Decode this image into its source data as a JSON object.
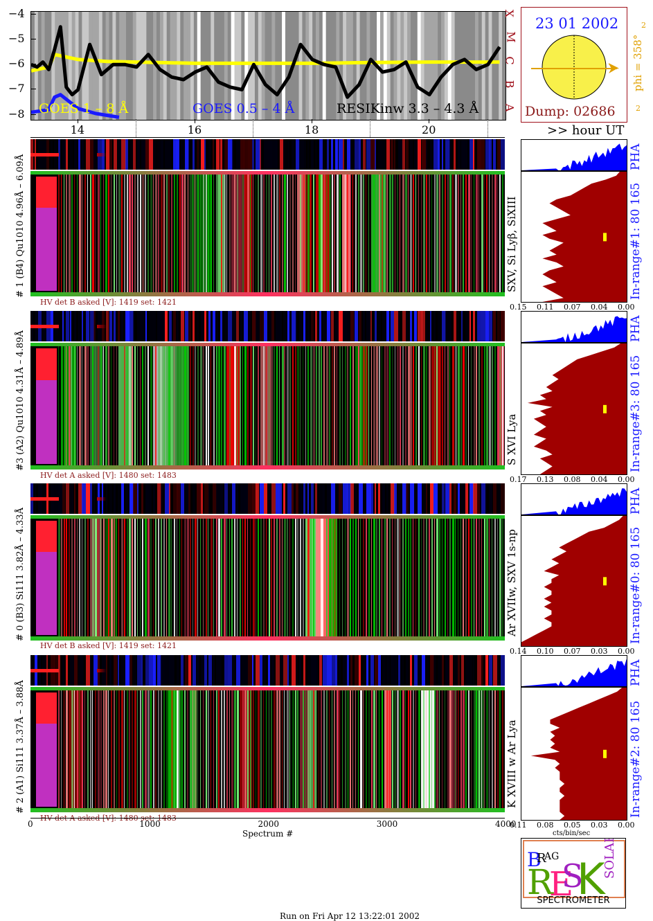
{
  "colors": {
    "goes_long": "#ffff00",
    "goes_short": "#1a1aff",
    "resik": "#000000",
    "hist_fill": "#a00000",
    "pha_fill": "#0000ff",
    "side_label": "#1a1aff",
    "hv_text": "#8b1a1a",
    "date": "#1a1aff",
    "dump": "#8b1a1a",
    "phi": "#e0a000",
    "letters": "#a0101a",
    "sun": "#f8f04a"
  },
  "lightcurve": {
    "y_ticks": [
      "−4",
      "−5",
      "−6",
      "−7",
      "−8"
    ],
    "legend_goes_long": "GOES 1 – 8 Å",
    "legend_goes_short": "GOES 0.5 – 4 Å",
    "legend_resik": "RESIKinw 3.3 – 4.3 Å",
    "hour_ticks": [
      "14",
      "16",
      "18",
      "20"
    ],
    "hour_axis_label": ">> hour UT",
    "class_letters": [
      "X",
      "M",
      "C",
      "B",
      "A"
    ]
  },
  "sun_panel": {
    "date": "23 01 2002",
    "dump": "Dump: 02686",
    "phi": "phi = 358°",
    "marker_top": "2",
    "marker_bottom": "2"
  },
  "channels": [
    {
      "left_label": "# 1 (B4) Qu1010 4.96Å – 6.09Å",
      "right_label": "SXV, Si Lyβ, SiXIII",
      "side_pha": "PHA",
      "side_range": "In-range#1:   80 165",
      "hv": "HV det B asked [V]:  1419 set:  1421",
      "hist_ticks": [
        "0.15",
        "0.11",
        "0.07",
        "0.04",
        "0.00"
      ]
    },
    {
      "left_label": "#3 (A2) Qu1010  4.31Å – 4.89Å",
      "right_label": "S XVI Lya",
      "side_pha": "PHA",
      "side_range": "In-range#3:   80 165",
      "hv": "HV det A asked [V]:  1480 set:  1483",
      "hist_ticks": [
        "0.17",
        "0.13",
        "0.08",
        "0.04",
        "0.00"
      ]
    },
    {
      "left_label": "# 0 (B3) Si111  3.82Å – 4.33Å",
      "right_label": "Ar XVIIw,  SXV 1s-np",
      "side_pha": "PHA",
      "side_range": "In-range#0:   80 165",
      "hv": "HV det B asked [V]:  1419 set:  1421",
      "hist_ticks": [
        "0.14",
        "0.10",
        "0.07",
        "0.03",
        "0.00"
      ]
    },
    {
      "left_label": "# 2 (A1) Si111  3.37Å – 3.88Å",
      "right_label": "K XVIII w  Ar Lya",
      "side_pha": "PHA",
      "side_range": "In-range#2:   80 165",
      "hv": "HV det A asked [V]:  1480 set:  1483",
      "hist_ticks": [
        "0.11",
        "0.08",
        "0.05",
        "0.03",
        "0.00"
      ]
    }
  ],
  "spectrum_axis": {
    "ticks": [
      "0",
      "1000",
      "2000",
      "3000",
      "4000"
    ],
    "label": "Spectrum #"
  },
  "hist_axis_label": "cts/bin/sec",
  "logo": {
    "bottom_text": "SPECTROMETER",
    "letters": [
      "B",
      "R",
      "A",
      "G",
      "R",
      "E",
      "S",
      "I",
      "K",
      "S",
      "O",
      "L",
      "A",
      "R"
    ]
  },
  "footer": "Run on Fri Apr 12 13:22:01 2002",
  "chart_data": [
    {
      "type": "line",
      "title": "",
      "ylabel": "",
      "ylim": [
        -8.2,
        -3.9
      ],
      "xlim": [
        13.2,
        21.3
      ],
      "x_tick_labels": [
        "14",
        "16",
        "18",
        "20"
      ],
      "series": [
        {
          "name": "GOES 1 – 8 Å",
          "x": [
            13.2,
            13.5,
            13.6,
            13.8,
            14.0,
            14.5,
            15.0,
            16.0,
            17.0,
            18.0,
            19.0,
            20.0,
            21.2
          ],
          "y": [
            -6.25,
            -6.1,
            -5.6,
            -5.7,
            -5.8,
            -5.88,
            -5.9,
            -5.95,
            -5.95,
            -5.95,
            -5.92,
            -5.9,
            -5.9
          ]
        },
        {
          "name": "GOES 0.5 – 4 Å",
          "x": [
            13.2,
            13.5,
            13.6,
            13.7,
            14.0,
            14.3,
            14.7
          ],
          "y": [
            -7.9,
            -7.8,
            -7.3,
            -7.2,
            -7.75,
            -7.95,
            -8.1
          ]
        },
        {
          "name": "RESIKinw 3.3 – 4.3 Å",
          "x": [
            13.2,
            13.3,
            13.4,
            13.5,
            13.6,
            13.7,
            13.8,
            13.9,
            14.0,
            14.2,
            14.4,
            14.6,
            14.8,
            15.0,
            15.2,
            15.4,
            15.6,
            15.8,
            16.0,
            16.2,
            16.4,
            16.6,
            16.8,
            17.0,
            17.2,
            17.4,
            17.6,
            17.8,
            18.0,
            18.2,
            18.4,
            18.6,
            18.8,
            19.0,
            19.2,
            19.4,
            19.6,
            19.8,
            20.0,
            20.2,
            20.4,
            20.6,
            20.8,
            21.0,
            21.2
          ],
          "y": [
            -6.0,
            -6.1,
            -5.9,
            -6.2,
            -5.4,
            -4.5,
            -6.9,
            -7.2,
            -7.0,
            -5.2,
            -6.4,
            -6.0,
            -6.0,
            -6.1,
            -5.6,
            -6.2,
            -6.5,
            -6.6,
            -6.3,
            -6.1,
            -6.7,
            -6.9,
            -7.0,
            -6.0,
            -6.8,
            -7.2,
            -6.5,
            -5.2,
            -5.8,
            -6.0,
            -6.1,
            -7.3,
            -6.8,
            -5.8,
            -6.3,
            -6.2,
            -5.9,
            -6.9,
            -7.2,
            -6.5,
            -6.0,
            -5.8,
            -6.2,
            -6.0,
            -5.3
          ]
        }
      ]
    },
    {
      "type": "area",
      "x_axis": "cts/bin/sec",
      "xlim": [
        0.15,
        0.0
      ],
      "profile": [
        0.01,
        0.015,
        0.03,
        0.05,
        0.06,
        0.07,
        0.08,
        0.1,
        0.11,
        0.1,
        0.09,
        0.08,
        0.1,
        0.12,
        0.11,
        0.1,
        0.12,
        0.11,
        0.09,
        0.1,
        0.11,
        0.1,
        0.12,
        0.1,
        0.09,
        0.11,
        0.12,
        0.11,
        0.1,
        0.12,
        0.11,
        0.1,
        0.09,
        0.12
      ]
    },
    {
      "type": "area",
      "x_axis": "cts/bin/sec",
      "xlim": [
        0.17,
        0.0
      ],
      "profile": [
        0.01,
        0.02,
        0.04,
        0.06,
        0.08,
        0.09,
        0.1,
        0.11,
        0.12,
        0.11,
        0.12,
        0.13,
        0.12,
        0.14,
        0.13,
        0.16,
        0.12,
        0.14,
        0.13,
        0.15,
        0.14,
        0.13,
        0.14,
        0.15,
        0.13,
        0.14,
        0.15,
        0.13,
        0.12,
        0.14,
        0.13,
        0.12,
        0.13,
        0.14
      ]
    },
    {
      "type": "area",
      "x_axis": "cts/bin/sec",
      "xlim": [
        0.14,
        0.0
      ],
      "profile": [
        0.005,
        0.01,
        0.02,
        0.03,
        0.05,
        0.06,
        0.07,
        0.08,
        0.09,
        0.08,
        0.09,
        0.1,
        0.09,
        0.1,
        0.11,
        0.09,
        0.1,
        0.1,
        0.11,
        0.1,
        0.1,
        0.11,
        0.1,
        0.11,
        0.1,
        0.1,
        0.11,
        0.1,
        0.1,
        0.11,
        0.12,
        0.13,
        0.14,
        0.14
      ]
    },
    {
      "type": "area",
      "x_axis": "cts/bin/sec",
      "xlim": [
        0.11,
        0.0
      ],
      "profile": [
        0.005,
        0.01,
        0.02,
        0.03,
        0.04,
        0.05,
        0.06,
        0.07,
        0.08,
        0.08,
        0.07,
        0.08,
        0.075,
        0.08,
        0.075,
        0.08,
        0.07,
        0.1,
        0.075,
        0.07,
        0.075,
        0.07,
        0.07,
        0.07,
        0.065,
        0.07,
        0.07,
        0.065,
        0.07,
        0.07,
        0.07,
        0.07,
        0.065,
        0.07
      ]
    }
  ]
}
